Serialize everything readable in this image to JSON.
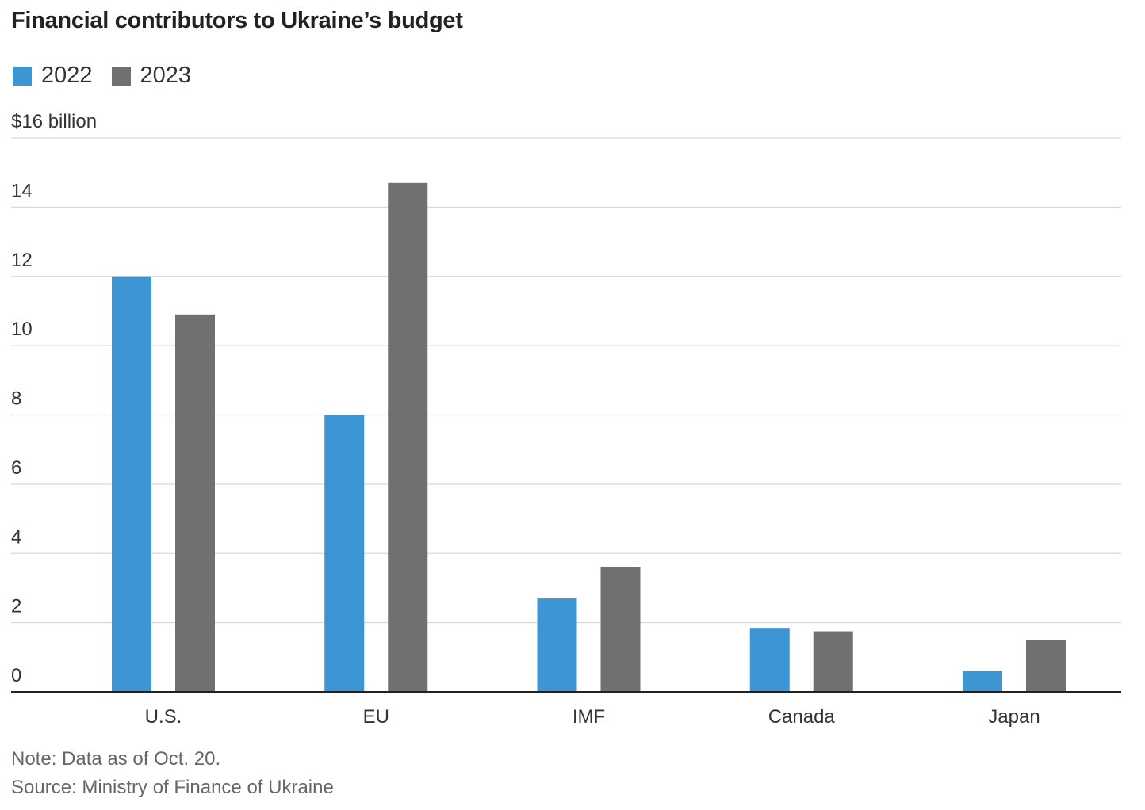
{
  "title": "Financial contributors to Ukraine’s budget",
  "legend": [
    {
      "label": "2022",
      "color": "#3d95d4"
    },
    {
      "label": "2023",
      "color": "#707070"
    }
  ],
  "chart_data": {
    "type": "bar",
    "title": "Financial contributors to Ukraine’s budget",
    "ylabel": "",
    "xlabel": "",
    "ylim": [
      0,
      16
    ],
    "yticks": [
      0,
      2,
      4,
      6,
      8,
      10,
      12,
      14,
      16
    ],
    "ytick_labels": [
      "0",
      "2",
      "4",
      "6",
      "8",
      "10",
      "12",
      "14",
      "$16 billion"
    ],
    "categories": [
      "U.S.",
      "EU",
      "IMF",
      "Canada",
      "Japan"
    ],
    "series": [
      {
        "name": "2022",
        "color": "#3d95d4",
        "values": [
          12.0,
          8.0,
          2.7,
          1.85,
          0.6
        ]
      },
      {
        "name": "2023",
        "color": "#707070",
        "values": [
          10.9,
          14.7,
          3.6,
          1.75,
          1.5
        ]
      }
    ],
    "grid": true,
    "legend_position": "top-left"
  },
  "note": "Note: Data as of Oct. 20.",
  "source": "Source: Ministry of Finance of Ukraine"
}
